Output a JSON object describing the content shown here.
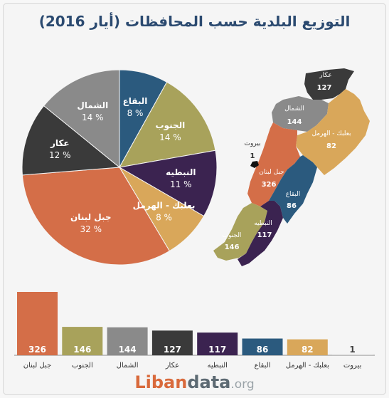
{
  "title": "التوزيع البلدية حسب المحافظات (أيار 2016)",
  "chart_data": {
    "type": "pie",
    "slices": [
      {
        "name": "البقاع",
        "pct": 8,
        "label": "8 %",
        "color": "#2b5a7e"
      },
      {
        "name": "الجنوب",
        "pct": 14,
        "label": "14 %",
        "color": "#a8a25b"
      },
      {
        "name": "النبطيه",
        "pct": 11,
        "label": "11 %",
        "color": "#3b2350"
      },
      {
        "name": "بعلبك - الهرمل",
        "pct": 8,
        "label": "8 %",
        "color": "#d9a75a"
      },
      {
        "name": "جبل لبنان",
        "pct": 32,
        "label": "32 %",
        "color": "#d46e48"
      },
      {
        "name": "عكار",
        "pct": 12,
        "label": "12 %",
        "color": "#3a3a3a"
      },
      {
        "name": "الشمال",
        "pct": 14,
        "label": "14 %",
        "color": "#8a8a8a"
      }
    ]
  },
  "bar_chart": {
    "type": "bar",
    "categories": [
      "جبل لبنان",
      "الجنوب",
      "الشمال",
      "عكار",
      "النبطيه",
      "البقاع",
      "بعلبك - الهرمل",
      "بيروت"
    ],
    "values": [
      326,
      146,
      144,
      127,
      117,
      86,
      82,
      1
    ],
    "colors": [
      "#d46e48",
      "#a8a25b",
      "#8a8a8a",
      "#3a3a3a",
      "#3b2350",
      "#2b5a7e",
      "#d9a75a",
      "#cccccc"
    ]
  },
  "map": {
    "regions": [
      {
        "name": "عكار",
        "value": "127",
        "color": "#3a3a3a"
      },
      {
        "name": "الشمال",
        "value": "144",
        "color": "#8a8a8a"
      },
      {
        "name": "بعلبك - الهرمل",
        "value": "82",
        "color": "#d9a75a"
      },
      {
        "name": "بيروت",
        "value": "1",
        "color": "#111111"
      },
      {
        "name": "جبل لبنان",
        "value": "326",
        "color": "#d46e48"
      },
      {
        "name": "البقاع",
        "value": "86",
        "color": "#2b5a7e"
      },
      {
        "name": "الجنوب",
        "value": "146",
        "color": "#a8a25b"
      },
      {
        "name": "النبطيه",
        "value": "117",
        "color": "#3b2350"
      }
    ]
  },
  "logo": {
    "part1": "Liban",
    "part2": "data",
    "part3": ".org"
  }
}
